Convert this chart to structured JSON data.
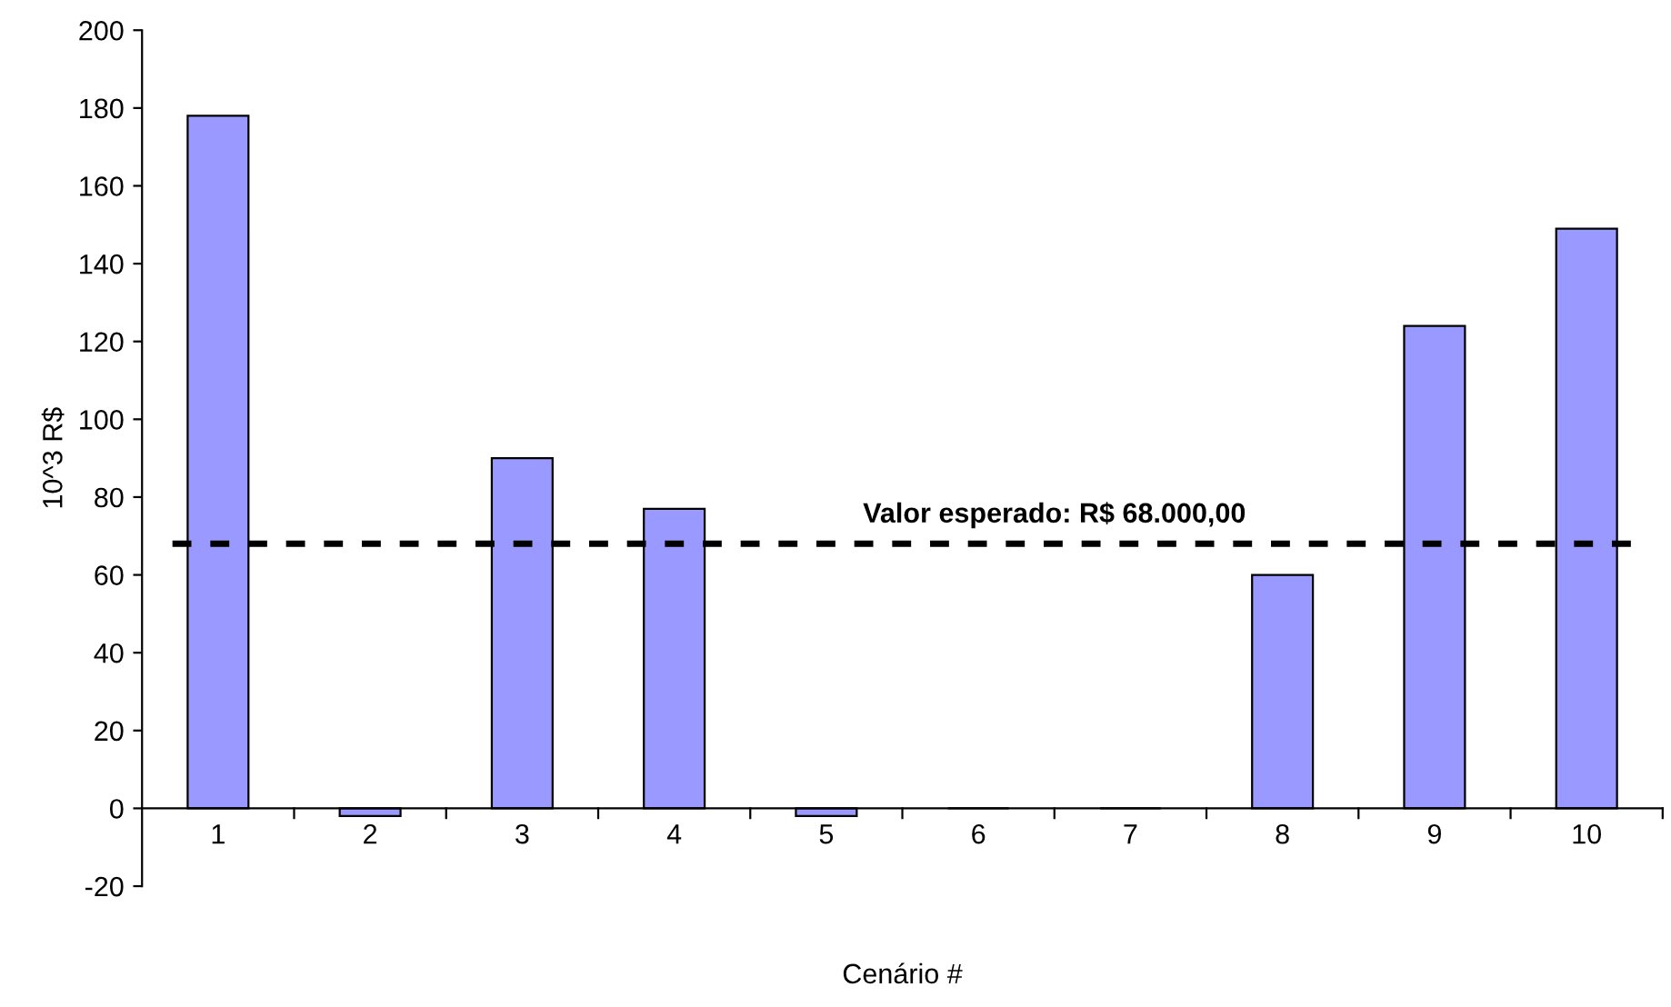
{
  "chart_data": {
    "type": "bar",
    "xlabel": "Cenário #",
    "ylabel": "10^3 R$",
    "categories": [
      "1",
      "2",
      "3",
      "4",
      "5",
      "6",
      "7",
      "8",
      "9",
      "10"
    ],
    "values": [
      178,
      -2,
      90,
      77,
      -2,
      0,
      0,
      60,
      124,
      149
    ],
    "color": "#9999ff",
    "ylim": [
      -20,
      200
    ],
    "yticks": [
      -20,
      0,
      20,
      40,
      60,
      80,
      100,
      120,
      140,
      160,
      180,
      200
    ],
    "grid": false,
    "legend": false,
    "ref_lines": [
      {
        "axis": "y",
        "value": 68,
        "label": "Valor esperado: R$ 68.000,00",
        "color": "#000000",
        "line_style": "dashed"
      }
    ]
  }
}
